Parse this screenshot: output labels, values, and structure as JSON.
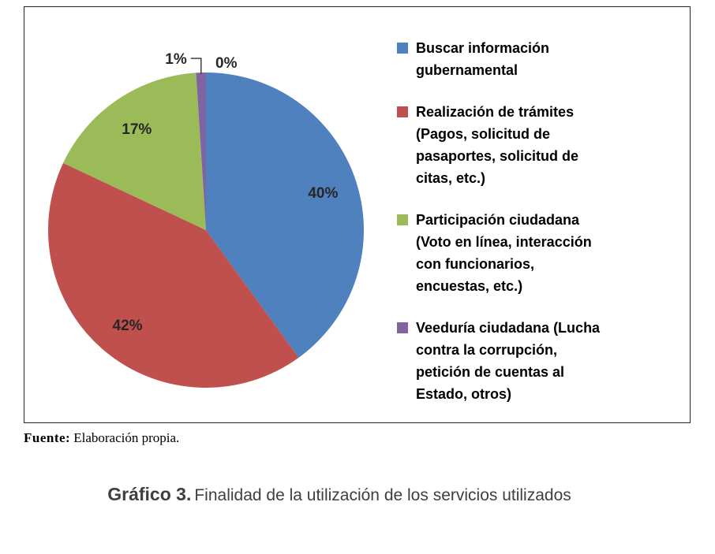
{
  "chart_data": {
    "type": "pie",
    "title": "",
    "legend_position": "right",
    "start_angle_deg": 0,
    "direction": "clockwise",
    "slices": [
      {
        "label": "Buscar información gubernamental",
        "value": 40,
        "pct_label": "40%",
        "color": "#4E81BD",
        "legend_lines": [
          "Buscar información",
          "gubernamental"
        ]
      },
      {
        "label": "Realización de trámites (Pagos, solicitud de pasaportes, solicitud de citas, etc.)",
        "value": 42,
        "pct_label": "42%",
        "color": "#C0504D",
        "legend_lines": [
          "Realización de trámites",
          "(Pagos, solicitud de",
          "pasaportes, solicitud de",
          "citas, etc.)"
        ]
      },
      {
        "label": "Participación ciudadana (Voto en línea, interacción con funcionarios, encuestas, etc.)",
        "value": 17,
        "pct_label": "17%",
        "color": "#9BBB59",
        "legend_lines": [
          "Participación ciudadana",
          "(Voto en línea, interacción",
          "con funcionarios,",
          "encuestas, etc.)"
        ]
      },
      {
        "label": "Veeduría ciudadana (Lucha contra la corrupción, petición de cuentas al Estado, otros)",
        "value": 1,
        "pct_label": "1%",
        "color": "#8064A2",
        "legend_lines": [
          "Veeduría ciudadana (Lucha",
          "contra la corrupción,",
          "petición de cuentas al",
          "Estado, otros)"
        ]
      },
      {
        "label": "",
        "value": 0,
        "pct_label": "0%",
        "color": "#4BACC6"
      }
    ]
  },
  "source": {
    "label": "Fuente:",
    "text": "Elaboración propia."
  },
  "caption": {
    "label": "Gráfico 3.",
    "text": "Finalidad de la utilización de los servicios utilizados"
  }
}
